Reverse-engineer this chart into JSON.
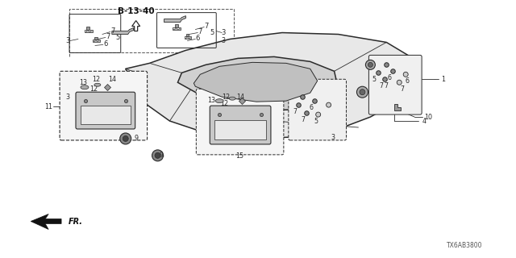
{
  "bg_color": "#ffffff",
  "diagram_code": "B-13-40",
  "part_number": "TX6AB3800",
  "fig_width": 6.4,
  "fig_height": 3.2,
  "line_color": "#2a2a2a",
  "label_color": "#2a2a2a",
  "dashed_box_color": "#555555",
  "fr_arrow_color": "#111111"
}
